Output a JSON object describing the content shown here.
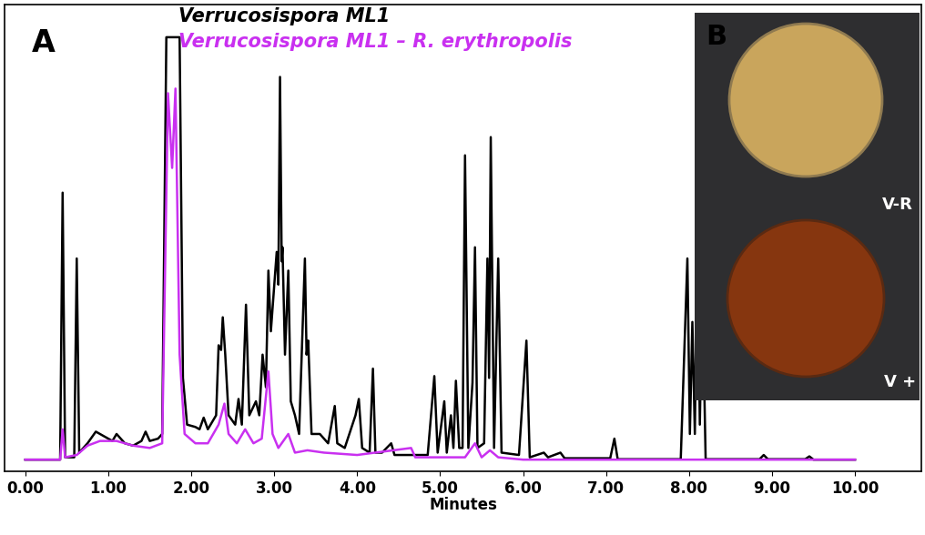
{
  "chart_data": {
    "type": "line",
    "panel_label": "A",
    "x_label": "Minutes",
    "xlim": [
      -0.25,
      10.8
    ],
    "ylim": [
      0,
      100
    ],
    "xticks": [
      {
        "value": 0,
        "label": "0.00"
      },
      {
        "value": 1,
        "label": "1.00"
      },
      {
        "value": 2,
        "label": "2.00"
      },
      {
        "value": 3,
        "label": "3.00"
      },
      {
        "value": 4,
        "label": "4.00"
      },
      {
        "value": 5,
        "label": "5.00"
      },
      {
        "value": 6,
        "label": "6.00"
      },
      {
        "value": 7,
        "label": "7.00"
      },
      {
        "value": 8,
        "label": "8.00"
      },
      {
        "value": 9,
        "label": "9.00"
      },
      {
        "value": 10,
        "label": "10.00"
      }
    ],
    "tick_labels": "x",
    "series": [
      {
        "name": "Verrucosispora ML1",
        "color": "#000000",
        "x": [
          0.0,
          0.42,
          0.45,
          0.48,
          0.59,
          0.62,
          0.65,
          0.75,
          0.85,
          0.95,
          1.05,
          1.1,
          1.2,
          1.3,
          1.4,
          1.45,
          1.5,
          1.6,
          1.65,
          1.7,
          1.86,
          1.9,
          1.95,
          2.05,
          2.1,
          2.15,
          2.2,
          2.3,
          2.33,
          2.36,
          2.38,
          2.41,
          2.45,
          2.53,
          2.57,
          2.61,
          2.66,
          2.7,
          2.78,
          2.82,
          2.86,
          2.9,
          2.93,
          2.96,
          3.03,
          3.05,
          3.07,
          3.09,
          3.1,
          3.13,
          3.17,
          3.2,
          3.25,
          3.3,
          3.37,
          3.39,
          3.41,
          3.45,
          3.55,
          3.65,
          3.73,
          3.76,
          3.85,
          3.98,
          4.02,
          4.06,
          4.15,
          4.19,
          4.22,
          4.3,
          4.41,
          4.45,
          4.85,
          4.93,
          4.97,
          5.05,
          5.08,
          5.13,
          5.16,
          5.19,
          5.23,
          5.27,
          5.3,
          5.34,
          5.39,
          5.42,
          5.45,
          5.53,
          5.57,
          5.59,
          5.61,
          5.65,
          5.7,
          5.74,
          5.95,
          6.04,
          6.08,
          6.25,
          6.3,
          6.45,
          6.5,
          7.05,
          7.1,
          7.14,
          7.9,
          7.98,
          8.01,
          8.04,
          8.07,
          8.1,
          8.13,
          8.16,
          8.2,
          8.85,
          8.9,
          8.95,
          9.4,
          9.45,
          9.5,
          10.0
        ],
        "values": [
          2.5,
          2.5,
          59.7,
          3,
          3,
          45.6,
          4,
          6,
          8.5,
          7.5,
          6.5,
          8,
          6,
          5.5,
          6.5,
          8.5,
          6.5,
          7,
          8,
          93,
          93,
          20,
          10,
          9.5,
          9,
          11.5,
          9,
          12,
          27,
          26,
          33,
          25,
          12,
          10,
          15.5,
          10,
          35.7,
          12,
          15,
          12,
          25,
          18,
          43,
          30,
          47,
          40,
          84.5,
          45,
          48,
          25,
          43,
          15,
          12,
          8,
          45.6,
          25,
          28,
          8,
          8,
          6,
          14,
          6,
          5,
          12,
          15.5,
          5,
          4,
          22,
          4,
          4,
          6,
          3.5,
          3.5,
          20.4,
          4,
          15,
          4,
          12,
          5,
          19.4,
          5,
          5,
          67.7,
          5,
          19,
          48,
          5,
          6,
          45.6,
          20,
          71.6,
          5,
          45.6,
          4,
          3.5,
          28,
          3,
          4,
          3,
          4,
          2.8,
          2.8,
          7,
          2.6,
          2.6,
          45.6,
          8,
          32,
          8,
          54,
          10,
          40,
          2.6,
          2.6,
          3.5,
          2.6,
          2.6,
          3.2,
          2.5,
          2.5
        ]
      },
      {
        "name": "Verrucosispora ML1 – R. erythropolis",
        "color": "#c930f0",
        "x": [
          0.0,
          0.42,
          0.45,
          0.48,
          0.62,
          0.75,
          0.9,
          1.1,
          1.3,
          1.5,
          1.65,
          1.72,
          1.77,
          1.81,
          1.86,
          1.92,
          2.05,
          2.2,
          2.33,
          2.4,
          2.45,
          2.55,
          2.65,
          2.75,
          2.85,
          2.93,
          2.98,
          3.05,
          3.17,
          3.25,
          3.4,
          3.6,
          4.0,
          4.65,
          4.7,
          5.3,
          5.42,
          5.5,
          5.6,
          5.7,
          6.0,
          10.0
        ],
        "values": [
          2.5,
          2.5,
          9,
          3,
          3.5,
          5.5,
          6.5,
          6.5,
          5.5,
          5,
          6,
          81,
          65,
          82,
          25,
          8,
          6,
          6,
          10,
          14.5,
          8,
          6,
          9,
          6,
          7,
          21.4,
          8,
          5,
          8,
          4,
          4.5,
          4,
          3.5,
          5,
          3,
          3,
          6,
          3,
          4.5,
          3,
          2.5,
          2.5
        ]
      }
    ]
  },
  "inset": {
    "panel_label": "B",
    "plates": [
      "V-R",
      "V +"
    ]
  }
}
